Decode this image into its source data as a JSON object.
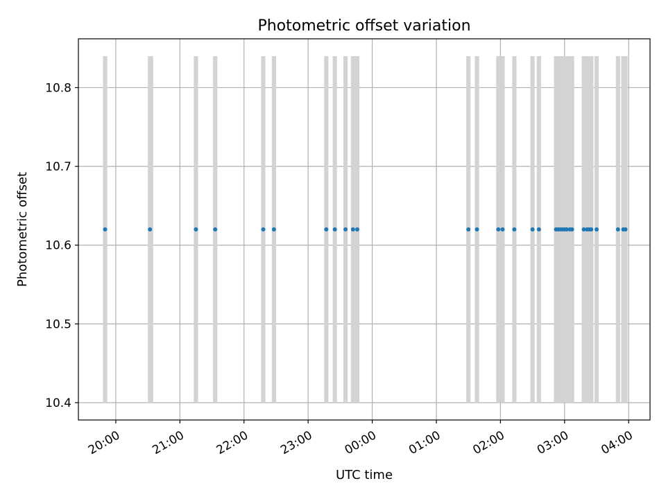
{
  "chart_data": {
    "type": "scatter",
    "title": "Photometric offset variation",
    "xlabel": "UTC time",
    "ylabel": "Photometric offset",
    "x_tick_labels": [
      "20:00",
      "21:00",
      "22:00",
      "23:00",
      "00:00",
      "01:00",
      "02:00",
      "03:00",
      "04:00"
    ],
    "x_tick_hours": [
      20,
      21,
      22,
      23,
      24,
      25,
      26,
      27,
      28
    ],
    "y_ticks": [
      10.4,
      10.5,
      10.6,
      10.7,
      10.8
    ],
    "y_tick_labels": [
      "10.4",
      "10.5",
      "10.6",
      "10.7",
      "10.8"
    ],
    "xlim": [
      "19:25",
      "04:20"
    ],
    "ylim": [
      10.378,
      10.862
    ],
    "grid": true,
    "series_color": "#1f77b4",
    "band_color": "#d3d3d3",
    "band_range": [
      10.4,
      10.84
    ],
    "bands": [
      [
        "19:48",
        "19:52"
      ],
      [
        "20:30",
        "20:35"
      ],
      [
        "21:13",
        "21:17"
      ],
      [
        "21:31",
        "21:35"
      ],
      [
        "22:16",
        "22:20"
      ],
      [
        "22:26",
        "22:30"
      ],
      [
        "23:15",
        "23:19"
      ],
      [
        "23:23",
        "23:27"
      ],
      [
        "23:33",
        "23:37"
      ],
      [
        "23:40",
        "23:44"
      ],
      [
        "23:44",
        "23:48"
      ],
      [
        "01:28",
        "01:32"
      ],
      [
        "01:36",
        "01:40"
      ],
      [
        "01:56",
        "02:00"
      ],
      [
        "02:00",
        "02:04"
      ],
      [
        "02:11",
        "02:15"
      ],
      [
        "02:28",
        "02:32"
      ],
      [
        "02:34",
        "02:38"
      ],
      [
        "02:50",
        "02:54"
      ],
      [
        "02:52",
        "02:56"
      ],
      [
        "02:54",
        "02:58"
      ],
      [
        "02:56",
        "03:00"
      ],
      [
        "02:58",
        "03:02"
      ],
      [
        "03:00",
        "03:04"
      ],
      [
        "03:03",
        "03:07"
      ],
      [
        "03:05",
        "03:09"
      ],
      [
        "03:16",
        "03:20"
      ],
      [
        "03:19",
        "03:23"
      ],
      [
        "03:21",
        "03:25"
      ],
      [
        "03:23",
        "03:27"
      ],
      [
        "03:28",
        "03:32"
      ],
      [
        "03:48",
        "03:52"
      ],
      [
        "03:53",
        "03:57"
      ],
      [
        "03:55",
        "03:59"
      ]
    ],
    "points": [
      {
        "x": "19:50",
        "y": 10.62
      },
      {
        "x": "20:32",
        "y": 10.62
      },
      {
        "x": "21:15",
        "y": 10.62
      },
      {
        "x": "21:33",
        "y": 10.62
      },
      {
        "x": "22:18",
        "y": 10.62
      },
      {
        "x": "22:28",
        "y": 10.62
      },
      {
        "x": "23:17",
        "y": 10.62
      },
      {
        "x": "23:25",
        "y": 10.62
      },
      {
        "x": "23:35",
        "y": 10.62
      },
      {
        "x": "23:42",
        "y": 10.62
      },
      {
        "x": "23:46",
        "y": 10.62
      },
      {
        "x": "01:30",
        "y": 10.62
      },
      {
        "x": "01:38",
        "y": 10.62
      },
      {
        "x": "01:58",
        "y": 10.62
      },
      {
        "x": "02:02",
        "y": 10.62
      },
      {
        "x": "02:13",
        "y": 10.62
      },
      {
        "x": "02:30",
        "y": 10.62
      },
      {
        "x": "02:36",
        "y": 10.62
      },
      {
        "x": "02:52",
        "y": 10.62
      },
      {
        "x": "02:54",
        "y": 10.62
      },
      {
        "x": "02:56",
        "y": 10.62
      },
      {
        "x": "02:58",
        "y": 10.62
      },
      {
        "x": "03:00",
        "y": 10.62
      },
      {
        "x": "03:02",
        "y": 10.62
      },
      {
        "x": "03:05",
        "y": 10.62
      },
      {
        "x": "03:07",
        "y": 10.62
      },
      {
        "x": "03:18",
        "y": 10.62
      },
      {
        "x": "03:21",
        "y": 10.62
      },
      {
        "x": "03:23",
        "y": 10.62
      },
      {
        "x": "03:25",
        "y": 10.62
      },
      {
        "x": "03:30",
        "y": 10.62
      },
      {
        "x": "03:50",
        "y": 10.62
      },
      {
        "x": "03:55",
        "y": 10.62
      },
      {
        "x": "03:57",
        "y": 10.62
      }
    ]
  }
}
